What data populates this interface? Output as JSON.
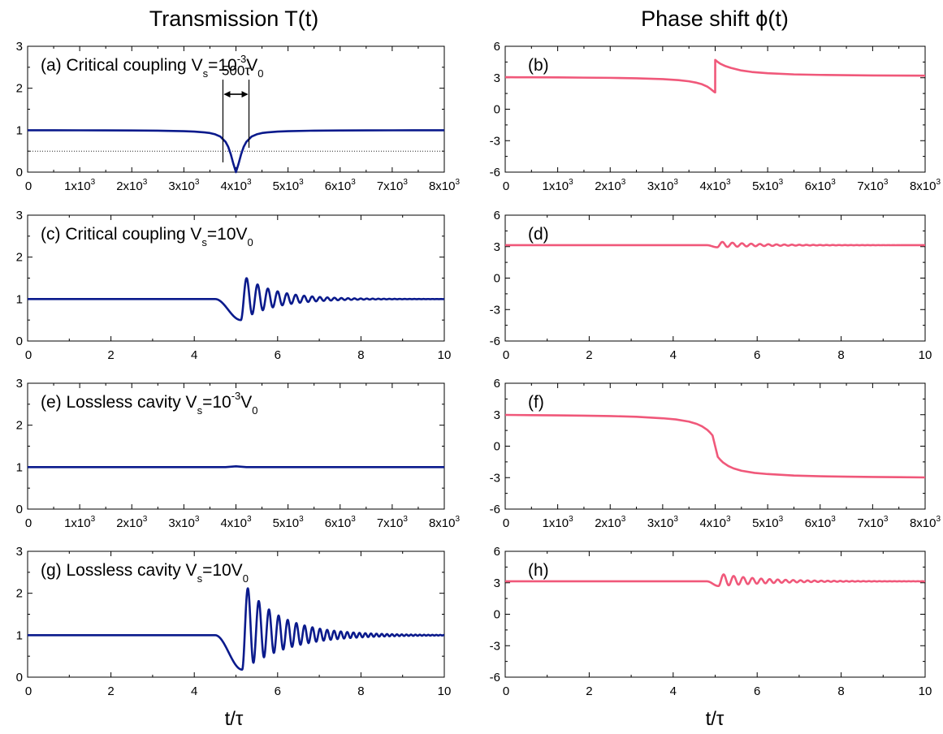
{
  "figure": {
    "col_titles": [
      "Transmission T(t)",
      "Phase shift ϕ(t)"
    ],
    "xlabel": "t/τ"
  },
  "colors": {
    "transmission": "#0a1a8c",
    "phase": "#f0587a"
  },
  "chart_data": [
    {
      "id": "a",
      "type": "line",
      "label_parts": [
        {
          "t": "(a) Critical coupling V"
        },
        {
          "t": "s",
          "sub": true
        },
        {
          "t": "=10"
        },
        {
          "t": "-3",
          "sup": true
        },
        {
          "t": "V"
        },
        {
          "t": "0",
          "sub": true
        }
      ],
      "xlim": [
        0,
        8000
      ],
      "ylim": [
        0,
        3
      ],
      "xticks": [
        0,
        1000,
        2000,
        3000,
        4000,
        5000,
        6000,
        7000,
        8000
      ],
      "xtick_labels": [
        "0",
        "1x10^3",
        "2x10^3",
        "3x10^3",
        "4x10^3",
        "5x10^3",
        "6x10^3",
        "7x10^3",
        "8x10^3"
      ],
      "yticks": [
        0,
        1,
        2,
        3
      ],
      "ytick_labels": [
        "0",
        "1",
        "2",
        "3"
      ],
      "hline": 0.5,
      "annotation": {
        "text": "500τ",
        "x1": 3750,
        "x2": 4250,
        "y": 2.2,
        "bar_top": 2.05
      },
      "series": [
        {
          "x": [
            0,
            500,
            1000,
            1500,
            2000,
            2500,
            3000,
            3200,
            3400,
            3500,
            3600,
            3700,
            3800,
            3850,
            3900,
            3950,
            4000,
            4050,
            4100,
            4150,
            4200,
            4300,
            4400,
            4500,
            4600,
            4800,
            5000,
            5500,
            6000,
            6500,
            7000,
            7500,
            8000
          ],
          "y": [
            0.998,
            0.998,
            0.997,
            0.996,
            0.994,
            0.989,
            0.977,
            0.967,
            0.947,
            0.932,
            0.902,
            0.848,
            0.723,
            0.608,
            0.43,
            0.2,
            0.0,
            0.2,
            0.43,
            0.608,
            0.723,
            0.848,
            0.902,
            0.932,
            0.947,
            0.967,
            0.977,
            0.989,
            0.994,
            0.996,
            0.997,
            0.998,
            0.998
          ]
        }
      ]
    },
    {
      "id": "b",
      "type": "line",
      "label_parts": [
        {
          "t": "(b)"
        }
      ],
      "xlim": [
        0,
        8000
      ],
      "ylim": [
        -6,
        6
      ],
      "xticks": [
        0,
        1000,
        2000,
        3000,
        4000,
        5000,
        6000,
        7000,
        8000
      ],
      "xtick_labels": [
        "0",
        "1x10^3",
        "2x10^3",
        "3x10^3",
        "4x10^3",
        "5x10^3",
        "6x10^3",
        "7x10^3",
        "8x10^3"
      ],
      "yticks": [
        -6,
        -3,
        0,
        3,
        6
      ],
      "ytick_labels": [
        "-6",
        "-3",
        "0",
        "3",
        "6"
      ],
      "series": [
        {
          "x": [
            0,
            500,
            1000,
            1500,
            2000,
            2500,
            3000,
            3300,
            3500,
            3650,
            3750,
            3850,
            3900,
            3950,
            3990,
            4000,
            4001,
            4050,
            4100,
            4200,
            4300,
            4500,
            4700,
            5000,
            5500,
            6000,
            7000,
            8000
          ],
          "y": [
            3.05,
            3.04,
            3.03,
            3.01,
            2.99,
            2.95,
            2.87,
            2.77,
            2.66,
            2.52,
            2.38,
            2.15,
            1.98,
            1.78,
            1.62,
            1.6,
            4.7,
            4.5,
            4.33,
            4.1,
            3.94,
            3.69,
            3.55,
            3.43,
            3.32,
            3.27,
            3.22,
            3.2
          ]
        }
      ]
    },
    {
      "id": "c",
      "type": "line",
      "label_parts": [
        {
          "t": "(c) Critical coupling V"
        },
        {
          "t": "s",
          "sub": true
        },
        {
          "t": "=10V"
        },
        {
          "t": "0",
          "sub": true
        }
      ],
      "xlim": [
        0,
        10
      ],
      "ylim": [
        0,
        3
      ],
      "xticks": [
        0,
        2,
        4,
        6,
        8,
        10
      ],
      "xtick_labels": [
        "0",
        "2",
        "4",
        "6",
        "8",
        "10"
      ],
      "yticks": [
        0,
        1,
        2,
        3
      ],
      "ytick_labels": [
        "0",
        "1",
        "2",
        "3"
      ],
      "series": [
        {
          "generator": "ring",
          "baseline": 1.0,
          "t0": 4.5,
          "pre": {
            "t1": 5.12,
            "depth": 0.5
          },
          "p1": 0.6,
          "period": 0.28,
          "decay": 0.7,
          "chirp": 0.12
        }
      ]
    },
    {
      "id": "d",
      "type": "line",
      "label_parts": [
        {
          "t": "(d)"
        }
      ],
      "xlim": [
        0,
        10
      ],
      "ylim": [
        -6,
        6
      ],
      "xticks": [
        0,
        2,
        4,
        6,
        8,
        10
      ],
      "xtick_labels": [
        "0",
        "2",
        "4",
        "6",
        "8",
        "10"
      ],
      "yticks": [
        -6,
        -3,
        0,
        3,
        6
      ],
      "ytick_labels": [
        "-6",
        "-3",
        "0",
        "3",
        "6"
      ],
      "series": [
        {
          "generator": "ring",
          "baseline": 3.14,
          "t0": 4.8,
          "pre": {
            "t1": 5.05,
            "depth": 0.2
          },
          "p1": 0.35,
          "period": 0.25,
          "decay": 0.9,
          "chirp": 0.1
        }
      ]
    },
    {
      "id": "e",
      "type": "line",
      "label_parts": [
        {
          "t": "(e) Lossless cavity V"
        },
        {
          "t": "s",
          "sub": true
        },
        {
          "t": "=10"
        },
        {
          "t": "-3",
          "sup": true
        },
        {
          "t": "V"
        },
        {
          "t": "0",
          "sub": true
        }
      ],
      "xlim": [
        0,
        8000
      ],
      "ylim": [
        0,
        3
      ],
      "xticks": [
        0,
        1000,
        2000,
        3000,
        4000,
        5000,
        6000,
        7000,
        8000
      ],
      "xtick_labels": [
        "0",
        "1x10^3",
        "2x10^3",
        "3x10^3",
        "4x10^3",
        "5x10^3",
        "6x10^3",
        "7x10^3",
        "8x10^3"
      ],
      "yticks": [
        0,
        1,
        2,
        3
      ],
      "ytick_labels": [
        "0",
        "1",
        "2",
        "3"
      ],
      "series": [
        {
          "x": [
            0,
            3800,
            3900,
            4000,
            4100,
            4200,
            8000
          ],
          "y": [
            1.0,
            1.0,
            1.01,
            1.02,
            1.01,
            1.0,
            1.0
          ]
        }
      ]
    },
    {
      "id": "f",
      "type": "line",
      "label_parts": [
        {
          "t": "(f)"
        }
      ],
      "xlim": [
        0,
        8000
      ],
      "ylim": [
        -6,
        6
      ],
      "xticks": [
        0,
        1000,
        2000,
        3000,
        4000,
        5000,
        6000,
        7000,
        8000
      ],
      "xtick_labels": [
        "0",
        "1x10^3",
        "2x10^3",
        "3x10^3",
        "4x10^3",
        "5x10^3",
        "6x10^3",
        "7x10^3",
        "8x10^3"
      ],
      "yticks": [
        -6,
        -3,
        0,
        3,
        6
      ],
      "ytick_labels": [
        "-6",
        "-3",
        "0",
        "3",
        "6"
      ],
      "series": [
        {
          "x": [
            0,
            500,
            1000,
            1500,
            2000,
            2500,
            3000,
            3250,
            3500,
            3650,
            3750,
            3850,
            3900,
            3950,
            4000,
            4050,
            4100,
            4150,
            4250,
            4350,
            4500,
            4750,
            5000,
            5500,
            6000,
            6500,
            7000,
            7500,
            8000
          ],
          "y": [
            2.98,
            2.96,
            2.94,
            2.91,
            2.87,
            2.8,
            2.66,
            2.55,
            2.34,
            2.12,
            1.89,
            1.55,
            1.31,
            1.02,
            0.0,
            -1.02,
            -1.31,
            -1.55,
            -1.89,
            -2.12,
            -2.34,
            -2.55,
            -2.66,
            -2.8,
            -2.87,
            -2.91,
            -2.94,
            -2.96,
            -2.98
          ]
        }
      ]
    },
    {
      "id": "g",
      "type": "line",
      "label_parts": [
        {
          "t": "(g) Lossless cavity V"
        },
        {
          "t": "s",
          "sub": true
        },
        {
          "t": "=10V"
        },
        {
          "t": "0",
          "sub": true
        }
      ],
      "xlim": [
        0,
        10
      ],
      "ylim": [
        0,
        3
      ],
      "xticks": [
        0,
        2,
        4,
        6,
        8,
        10
      ],
      "xtick_labels": [
        "0",
        "2",
        "4",
        "6",
        "8",
        "10"
      ],
      "yticks": [
        0,
        1,
        2,
        3
      ],
      "ytick_labels": [
        "0",
        "1",
        "2",
        "3"
      ],
      "series": [
        {
          "generator": "ring",
          "baseline": 1.0,
          "t0": 4.5,
          "pre": {
            "t1": 5.15,
            "depth": 0.82
          },
          "p1": 1.32,
          "period": 0.28,
          "decay": 0.85,
          "chirp": 0.13
        }
      ]
    },
    {
      "id": "h",
      "type": "line",
      "label_parts": [
        {
          "t": "(h)"
        }
      ],
      "xlim": [
        0,
        10
      ],
      "ylim": [
        -6,
        6
      ],
      "xticks": [
        0,
        2,
        4,
        6,
        8,
        10
      ],
      "xtick_labels": [
        "0",
        "2",
        "4",
        "6",
        "8",
        "10"
      ],
      "yticks": [
        -6,
        -3,
        0,
        3,
        6
      ],
      "ytick_labels": [
        "-6",
        "-3",
        "0",
        "3",
        "6"
      ],
      "series": [
        {
          "generator": "ring",
          "baseline": 3.14,
          "t0": 4.8,
          "pre": {
            "t1": 5.08,
            "depth": 0.45
          },
          "p1": 0.75,
          "period": 0.25,
          "decay": 0.95,
          "chirp": 0.1
        }
      ]
    }
  ]
}
